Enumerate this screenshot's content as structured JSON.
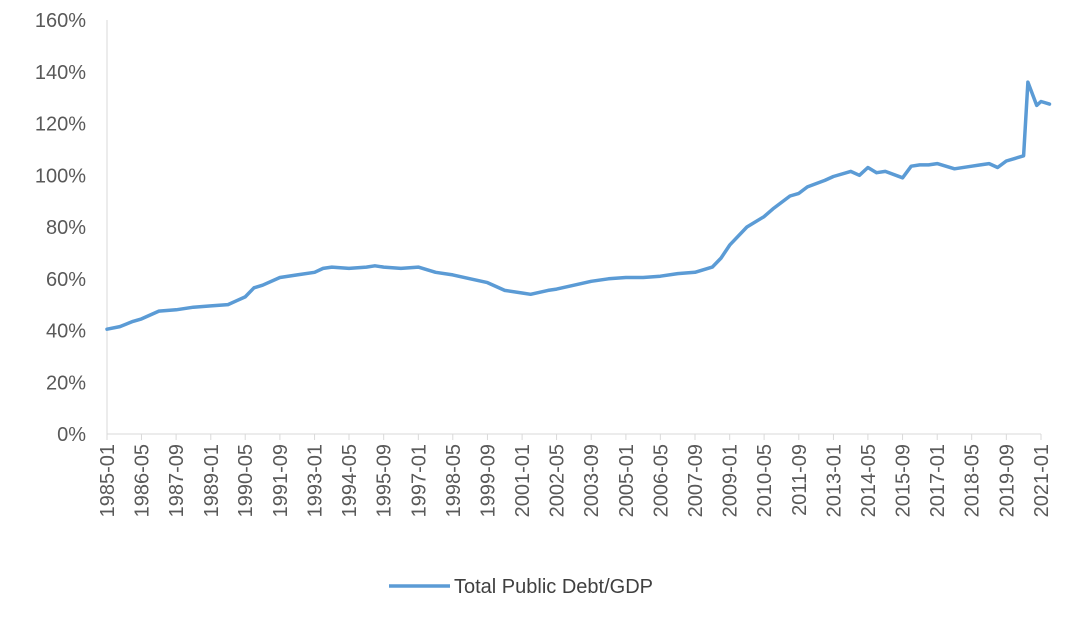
{
  "chart_data": {
    "type": "line",
    "title": "",
    "xlabel": "",
    "ylabel": "",
    "ylim": [
      0,
      160
    ],
    "y_ticks": [
      "0%",
      "20%",
      "40%",
      "60%",
      "80%",
      "100%",
      "120%",
      "140%",
      "160%"
    ],
    "x_ticks": [
      "1985-01",
      "1986-05",
      "1987-09",
      "1989-01",
      "1990-05",
      "1991-09",
      "1993-01",
      "1994-05",
      "1995-09",
      "1997-01",
      "1998-05",
      "1999-09",
      "2001-01",
      "2002-05",
      "2003-09",
      "2005-01",
      "2006-05",
      "2007-09",
      "2009-01",
      "2010-05",
      "2011-09",
      "2013-01",
      "2014-05",
      "2015-09",
      "2017-01",
      "2018-05",
      "2019-09",
      "2021-01"
    ],
    "grid": false,
    "legend_position": "bottom",
    "series": [
      {
        "name": "Total Public Debt/GDP",
        "color": "#5b9bd5",
        "points": [
          [
            "1985-01",
            40.5
          ],
          [
            "1985-07",
            41.5
          ],
          [
            "1986-01",
            43.5
          ],
          [
            "1986-05",
            44.5
          ],
          [
            "1986-09",
            46.0
          ],
          [
            "1987-01",
            47.5
          ],
          [
            "1987-09",
            48.0
          ],
          [
            "1988-05",
            49.0
          ],
          [
            "1989-01",
            49.5
          ],
          [
            "1989-09",
            50.0
          ],
          [
            "1990-01",
            51.5
          ],
          [
            "1990-05",
            53.0
          ],
          [
            "1990-09",
            56.5
          ],
          [
            "1991-01",
            57.5
          ],
          [
            "1991-09",
            60.5
          ],
          [
            "1992-05",
            61.5
          ],
          [
            "1993-01",
            62.5
          ],
          [
            "1993-05",
            64.0
          ],
          [
            "1993-09",
            64.5
          ],
          [
            "1994-05",
            64.0
          ],
          [
            "1995-01",
            64.5
          ],
          [
            "1995-05",
            65.0
          ],
          [
            "1995-09",
            64.5
          ],
          [
            "1996-05",
            64.0
          ],
          [
            "1997-01",
            64.5
          ],
          [
            "1997-05",
            63.5
          ],
          [
            "1997-09",
            62.5
          ],
          [
            "1998-05",
            61.5
          ],
          [
            "1999-01",
            60.0
          ],
          [
            "1999-09",
            58.5
          ],
          [
            "2000-05",
            55.5
          ],
          [
            "2001-01",
            54.5
          ],
          [
            "2001-05",
            54.0
          ],
          [
            "2002-01",
            55.5
          ],
          [
            "2002-05",
            56.0
          ],
          [
            "2003-01",
            57.5
          ],
          [
            "2003-09",
            59.0
          ],
          [
            "2004-05",
            60.0
          ],
          [
            "2005-01",
            60.5
          ],
          [
            "2005-09",
            60.5
          ],
          [
            "2006-05",
            61.0
          ],
          [
            "2007-01",
            62.0
          ],
          [
            "2007-09",
            62.5
          ],
          [
            "2008-05",
            64.5
          ],
          [
            "2008-09",
            68.0
          ],
          [
            "2009-01",
            73.0
          ],
          [
            "2009-09",
            80.0
          ],
          [
            "2010-05",
            84.0
          ],
          [
            "2010-09",
            87.0
          ],
          [
            "2011-05",
            92.0
          ],
          [
            "2011-09",
            93.0
          ],
          [
            "2012-01",
            95.5
          ],
          [
            "2012-09",
            98.0
          ],
          [
            "2013-01",
            99.5
          ],
          [
            "2013-09",
            101.5
          ],
          [
            "2014-01",
            100.0
          ],
          [
            "2014-05",
            103.0
          ],
          [
            "2014-09",
            101.0
          ],
          [
            "2015-01",
            101.5
          ],
          [
            "2015-09",
            99.0
          ],
          [
            "2016-01",
            103.5
          ],
          [
            "2016-05",
            104.0
          ],
          [
            "2016-09",
            104.0
          ],
          [
            "2017-01",
            104.5
          ],
          [
            "2017-09",
            102.5
          ],
          [
            "2018-05",
            103.5
          ],
          [
            "2018-09",
            104.0
          ],
          [
            "2019-01",
            104.5
          ],
          [
            "2019-05",
            103.0
          ],
          [
            "2019-09",
            105.5
          ],
          [
            "2020-01",
            106.5
          ],
          [
            "2020-05",
            107.5
          ],
          [
            "2020-07",
            136.0
          ],
          [
            "2020-11",
            127.0
          ],
          [
            "2021-01",
            128.5
          ],
          [
            "2021-05",
            127.5
          ]
        ]
      }
    ]
  }
}
